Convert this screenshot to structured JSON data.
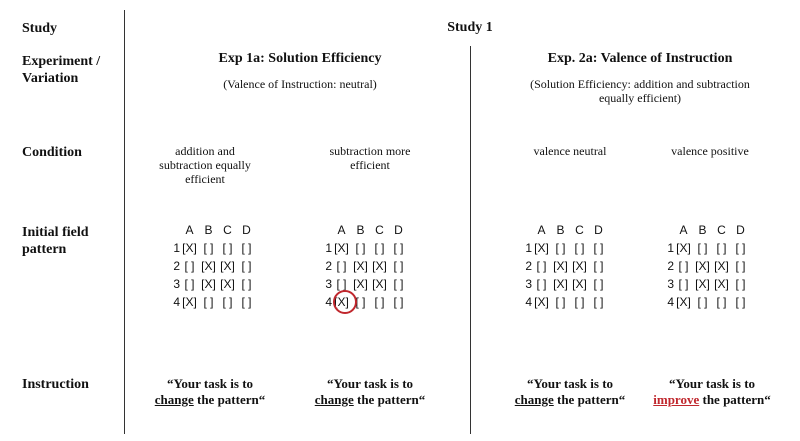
{
  "row_labels": {
    "study": "Study",
    "experiment_1": "Experiment /",
    "experiment_2": "Variation",
    "condition": "Condition",
    "field_1": "Initial field",
    "field_2": "pattern",
    "instruction": "Instruction"
  },
  "study_title": "Study 1",
  "exp1": {
    "title": "Exp 1a: Solution Efficiency",
    "subtitle": "(Valence of Instruction: neutral)"
  },
  "exp2": {
    "title": "Exp. 2a: Valence of Instruction",
    "subtitle_1": "(Solution Efficiency: addition and subtraction",
    "subtitle_2": "equally efficient)"
  },
  "conditions": {
    "c1_l1": "addition and",
    "c1_l2": "subtraction equally",
    "c1_l3": "efficient",
    "c2_l1": "subtraction more",
    "c2_l2": "efficient",
    "c3": "valence neutral",
    "c4": "valence positive"
  },
  "grid": {
    "cols": [
      "A",
      "B",
      "C",
      "D"
    ],
    "rows": [
      {
        "idx": "1",
        "cells": [
          "[X]",
          "[ ]",
          "[ ]",
          "[ ]"
        ]
      },
      {
        "idx": "2",
        "cells": [
          "[ ]",
          "[X]",
          "[X]",
          "[ ]"
        ]
      },
      {
        "idx": "3",
        "cells": [
          "[ ]",
          "[X]",
          "[X]",
          "[ ]"
        ]
      },
      {
        "idx": "4",
        "cells": [
          "[X]",
          "[ ]",
          "[ ]",
          "[ ]"
        ]
      }
    ]
  },
  "instructions": {
    "pre": "“Your task is to",
    "verb_change": "change",
    "verb_improve": "improve",
    "post": " the pattern“"
  },
  "colors": {
    "highlight": "#c0272d",
    "line": "#333333"
  }
}
